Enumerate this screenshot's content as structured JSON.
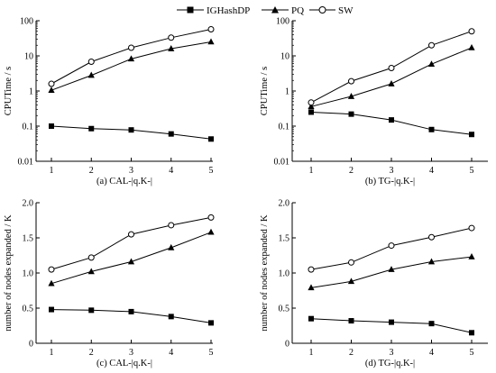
{
  "legend": {
    "entries": [
      {
        "name": "IGHashDP",
        "marker": "square"
      },
      {
        "name": "PQ",
        "marker": "triangle"
      },
      {
        "name": "SW",
        "marker": "circle"
      }
    ]
  },
  "chart_data": [
    {
      "type": "line",
      "caption": "(a) CAL-|q.K-|",
      "ylabel": "CPUTime / s",
      "yscale": "log",
      "ylim": [
        0.01,
        100
      ],
      "yticks": [
        0.01,
        0.1,
        1,
        10,
        100
      ],
      "ytick_labels": [
        "0.01",
        "0.1",
        "1",
        "10",
        "100"
      ],
      "x": [
        1,
        2,
        3,
        4,
        5
      ],
      "xtick_labels": [
        "1",
        "2",
        "3",
        "4",
        "5"
      ],
      "series": [
        {
          "name": "IGHashDP",
          "values": [
            0.1,
            0.085,
            0.078,
            0.06,
            0.043
          ]
        },
        {
          "name": "PQ",
          "values": [
            1.05,
            2.8,
            8.2,
            16,
            25
          ]
        },
        {
          "name": "SW",
          "values": [
            1.6,
            6.8,
            17,
            33,
            57
          ]
        }
      ]
    },
    {
      "type": "line",
      "caption": "(b) TG-|q.K-|",
      "ylabel": "CPUTime / s",
      "yscale": "log",
      "ylim": [
        0.01,
        100
      ],
      "yticks": [
        0.01,
        0.1,
        1,
        10,
        100
      ],
      "ytick_labels": [
        "0.01",
        "0.1",
        "1",
        "10",
        "100"
      ],
      "x": [
        1,
        2,
        3,
        4,
        5
      ],
      "xtick_labels": [
        "1",
        "2",
        "3",
        "4",
        "5"
      ],
      "series": [
        {
          "name": "IGHashDP",
          "values": [
            0.25,
            0.22,
            0.15,
            0.08,
            0.058
          ]
        },
        {
          "name": "PQ",
          "values": [
            0.36,
            0.7,
            1.6,
            5.8,
            17
          ]
        },
        {
          "name": "SW",
          "values": [
            0.47,
            1.9,
            4.5,
            20,
            50
          ]
        }
      ]
    },
    {
      "type": "line",
      "caption": "(c) CAL-|q.K-|",
      "ylabel": "number of nodes expanded / K",
      "yscale": "linear",
      "ylim": [
        0,
        2.0
      ],
      "yticks": [
        0,
        0.5,
        1.0,
        1.5,
        2.0
      ],
      "ytick_labels": [
        "0",
        "0.5",
        "1.0",
        "1.5",
        "2.0"
      ],
      "x": [
        1,
        2,
        3,
        4,
        5
      ],
      "xtick_labels": [
        "1",
        "2",
        "3",
        "4",
        "5"
      ],
      "series": [
        {
          "name": "IGHashDP",
          "values": [
            0.48,
            0.47,
            0.45,
            0.38,
            0.29
          ]
        },
        {
          "name": "PQ",
          "values": [
            0.85,
            1.02,
            1.16,
            1.36,
            1.58
          ]
        },
        {
          "name": "SW",
          "values": [
            1.05,
            1.22,
            1.55,
            1.68,
            1.79
          ]
        }
      ]
    },
    {
      "type": "line",
      "caption": "(d) TG-|q.K-|",
      "ylabel": "number of nodes expanded / K",
      "yscale": "linear",
      "ylim": [
        0,
        2.0
      ],
      "yticks": [
        0,
        0.5,
        1.0,
        1.5,
        2.0
      ],
      "ytick_labels": [
        "0",
        "0.5",
        "1.0",
        "1.5",
        "2.0"
      ],
      "x": [
        1,
        2,
        3,
        4,
        5
      ],
      "xtick_labels": [
        "1",
        "2",
        "3",
        "4",
        "5"
      ],
      "series": [
        {
          "name": "IGHashDP",
          "values": [
            0.35,
            0.32,
            0.3,
            0.28,
            0.15
          ]
        },
        {
          "name": "PQ",
          "values": [
            0.79,
            0.88,
            1.05,
            1.16,
            1.23
          ]
        },
        {
          "name": "SW",
          "values": [
            1.05,
            1.15,
            1.39,
            1.51,
            1.64
          ]
        }
      ]
    }
  ]
}
